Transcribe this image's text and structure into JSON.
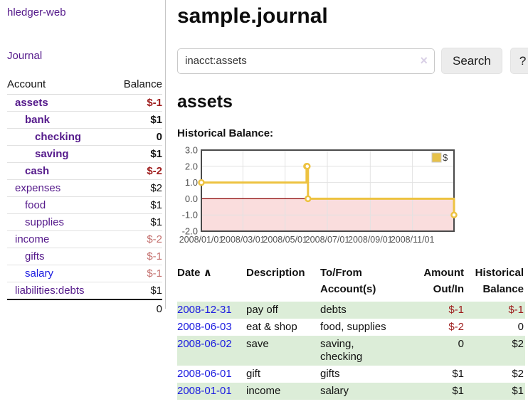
{
  "sidebar": {
    "brand": "hledger-web",
    "journal_label": "Journal",
    "accounts": {
      "header_account": "Account",
      "header_balance": "Balance",
      "rows": [
        {
          "name": "assets",
          "balance": "$-1",
          "indent": 1,
          "bold": true,
          "name_color": "purple",
          "negative": true
        },
        {
          "name": "bank",
          "balance": "$1",
          "indent": 2,
          "bold": true,
          "name_color": "purple",
          "negative": false
        },
        {
          "name": "checking",
          "balance": "0",
          "indent": 3,
          "bold": true,
          "name_color": "purple",
          "negative": false
        },
        {
          "name": "saving",
          "balance": "$1",
          "indent": 3,
          "bold": true,
          "name_color": "purple",
          "negative": false
        },
        {
          "name": "cash",
          "balance": "$-2",
          "indent": 2,
          "bold": true,
          "name_color": "purple",
          "negative": true
        },
        {
          "name": "expenses",
          "balance": "$2",
          "indent": 1,
          "bold": false,
          "name_color": "purple",
          "negative": false
        },
        {
          "name": "food",
          "balance": "$1",
          "indent": 2,
          "bold": false,
          "name_color": "purple",
          "negative": false
        },
        {
          "name": "supplies",
          "balance": "$1",
          "indent": 2,
          "bold": false,
          "name_color": "purple",
          "negative": false
        },
        {
          "name": "income",
          "balance": "$-2",
          "indent": 1,
          "bold": false,
          "name_color": "purple",
          "negative": true
        },
        {
          "name": "gifts",
          "balance": "$-1",
          "indent": 2,
          "bold": false,
          "name_color": "purple",
          "negative": true
        },
        {
          "name": "salary",
          "balance": "$-1",
          "indent": 2,
          "bold": false,
          "name_color": "blue",
          "negative": true
        },
        {
          "name": "liabilities:debts",
          "balance": "$1",
          "indent": 1,
          "bold": false,
          "name_color": "purple",
          "negative": false
        }
      ],
      "total": "0"
    }
  },
  "main": {
    "title": "sample.journal",
    "search": {
      "value": "inacct:assets",
      "clear_icon": "×",
      "button_label": "Search",
      "help_label": "?"
    },
    "account_heading": "assets"
  },
  "chart_data": {
    "type": "line",
    "step": true,
    "title": "Historical Balance:",
    "legend": [
      {
        "label": "$",
        "color": "#e6c14a",
        "box_border": "#c9c9c9"
      }
    ],
    "series": [
      {
        "name": "$",
        "color": "#edc240",
        "points": [
          {
            "date": "2008-01-01",
            "day": 0,
            "value": 1
          },
          {
            "date": "2008-06-01",
            "day": 152,
            "value": 2
          },
          {
            "date": "2008-06-02",
            "day": 153,
            "value": 2
          },
          {
            "date": "2008-06-03",
            "day": 154,
            "value": 0
          },
          {
            "date": "2008-12-31",
            "day": 365,
            "value": -1
          }
        ]
      }
    ],
    "x_ticks": [
      {
        "label": "2008/01/01",
        "day": 0
      },
      {
        "label": "2008/03/01",
        "day": 60
      },
      {
        "label": "2008/05/01",
        "day": 121
      },
      {
        "label": "2008/07/01",
        "day": 182
      },
      {
        "label": "2008/09/01",
        "day": 244
      },
      {
        "label": "2008/11/01",
        "day": 305
      }
    ],
    "y_ticks": [
      "3.0",
      "2.0",
      "1.0",
      "0.0",
      "-1.0",
      "-2.0"
    ],
    "ylim": [
      -2,
      3
    ],
    "xlim_days": [
      0,
      365
    ],
    "grid": true,
    "negative_region_fill": "#fadddd",
    "zero_line_color": "#8b0000",
    "axis_label_color": "#545454",
    "border_color": "#4a4a4a",
    "legend_position": "top-right"
  },
  "register": {
    "headers": {
      "date": "Date",
      "sort_arrow": "∧",
      "description": "Description",
      "accounts": "To/From Account(s)",
      "amount": "Amount Out/In",
      "balance": "Historical Balance"
    },
    "rows": [
      {
        "date": "2008-12-31",
        "description": "pay off",
        "accounts": "debts",
        "amount": "$-1",
        "amount_negative": true,
        "balance": "$-1",
        "balance_negative": true,
        "green": true
      },
      {
        "date": "2008-06-03",
        "description": "eat & shop",
        "accounts": "food, supplies",
        "amount": "$-2",
        "amount_negative": true,
        "balance": "0",
        "balance_negative": false,
        "green": false
      },
      {
        "date": "2008-06-02",
        "description": "save",
        "accounts": "saving, checking",
        "amount": "0",
        "amount_negative": false,
        "balance": "$2",
        "balance_negative": false,
        "green": true
      },
      {
        "date": "2008-06-01",
        "description": "gift",
        "accounts": "gifts",
        "amount": "$1",
        "amount_negative": false,
        "balance": "$2",
        "balance_negative": false,
        "green": false
      },
      {
        "date": "2008-01-01",
        "description": "income",
        "accounts": "salary",
        "amount": "$1",
        "amount_negative": false,
        "balance": "$1",
        "balance_negative": false,
        "green": true
      }
    ]
  }
}
